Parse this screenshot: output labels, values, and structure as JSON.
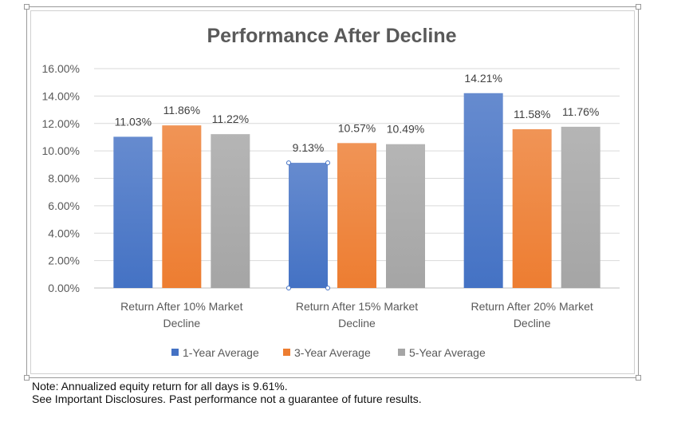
{
  "chart_data": {
    "type": "bar",
    "title": "Performance After Decline",
    "categories": [
      "Return After 10% Market Decline",
      "Return After 15% Market Decline",
      "Return After 20% Market Decline"
    ],
    "category_lines": [
      [
        "Return After 10% Market",
        "Decline"
      ],
      [
        "Return After 15% Market",
        "Decline"
      ],
      [
        "Return After 20% Market",
        "Decline"
      ]
    ],
    "series": [
      {
        "name": "1-Year Average",
        "values": [
          11.03,
          9.13,
          14.21
        ],
        "labels": [
          "11.03%",
          "9.13%",
          "14.21%"
        ],
        "color": "#4472c4"
      },
      {
        "name": "3-Year Average",
        "values": [
          11.86,
          10.57,
          11.58
        ],
        "labels": [
          "11.86%",
          "10.57%",
          "11.58%"
        ],
        "color": "#ed7d31"
      },
      {
        "name": "5-Year Average",
        "values": [
          11.22,
          10.49,
          11.76
        ],
        "labels": [
          "11.22%",
          "10.49%",
          "11.76%"
        ],
        "color": "#a5a5a5"
      }
    ],
    "ylim": [
      0,
      16
    ],
    "yticks": [
      0,
      2,
      4,
      6,
      8,
      10,
      12,
      14,
      16
    ],
    "ytick_labels": [
      "0.00%",
      "2.00%",
      "4.00%",
      "6.00%",
      "8.00%",
      "10.00%",
      "12.00%",
      "14.00%",
      "16.00%"
    ],
    "grid": true,
    "legend_position": "bottom"
  },
  "notes": {
    "line1": "Note: Annualized equity return for all days is 9.61%.",
    "line2": "See Important Disclosures.  Past performance not a guarantee of future results."
  }
}
